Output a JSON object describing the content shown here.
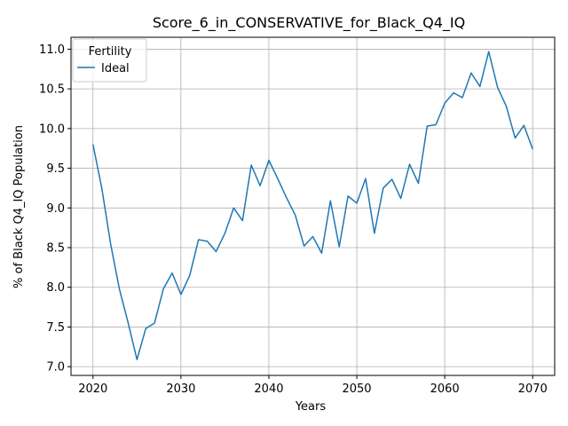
{
  "chart_data": {
    "type": "line",
    "title": "Score_6_in_CONSERVATIVE_for_Black_Q4_IQ",
    "xlabel": "Years",
    "ylabel": "% of Black Q4_IQ Population",
    "xlim": [
      2017.5,
      2072.5
    ],
    "ylim": [
      6.89,
      11.15
    ],
    "xticks": [
      2020,
      2030,
      2040,
      2050,
      2060,
      2070
    ],
    "yticks": [
      7.0,
      7.5,
      8.0,
      8.5,
      9.0,
      9.5,
      10.0,
      10.5,
      11.0
    ],
    "xtick_labels": [
      "2020",
      "2030",
      "2040",
      "2050",
      "2060",
      "2070"
    ],
    "ytick_labels": [
      "7.0",
      "7.5",
      "8.0",
      "8.5",
      "9.0",
      "9.5",
      "10.0",
      "10.5",
      "11.0"
    ],
    "grid": true,
    "legend": {
      "title": "Fertility",
      "position": "top-left"
    },
    "series": [
      {
        "name": "Ideal",
        "color": "#1f77b4",
        "x": [
          2020,
          2021,
          2022,
          2023,
          2024,
          2025,
          2026,
          2027,
          2028,
          2029,
          2030,
          2031,
          2032,
          2033,
          2034,
          2035,
          2036,
          2037,
          2038,
          2039,
          2040,
          2041,
          2042,
          2043,
          2044,
          2045,
          2046,
          2047,
          2048,
          2049,
          2050,
          2051,
          2052,
          2053,
          2054,
          2055,
          2056,
          2057,
          2058,
          2059,
          2060,
          2061,
          2062,
          2063,
          2064,
          2065,
          2066,
          2067,
          2068,
          2069,
          2070
        ],
        "y": [
          9.8,
          9.25,
          8.55,
          7.98,
          7.55,
          7.09,
          7.48,
          7.55,
          7.98,
          8.18,
          7.91,
          8.15,
          8.6,
          8.58,
          8.45,
          8.68,
          9.0,
          8.84,
          9.54,
          9.28,
          9.6,
          9.37,
          9.13,
          8.91,
          8.52,
          8.64,
          8.43,
          9.09,
          8.51,
          9.15,
          9.06,
          9.37,
          8.68,
          9.25,
          9.36,
          9.12,
          9.55,
          9.31,
          10.03,
          10.05,
          10.32,
          10.45,
          10.39,
          10.7,
          10.53,
          10.97,
          10.52,
          10.28,
          9.88,
          10.04,
          9.74
        ]
      }
    ]
  }
}
